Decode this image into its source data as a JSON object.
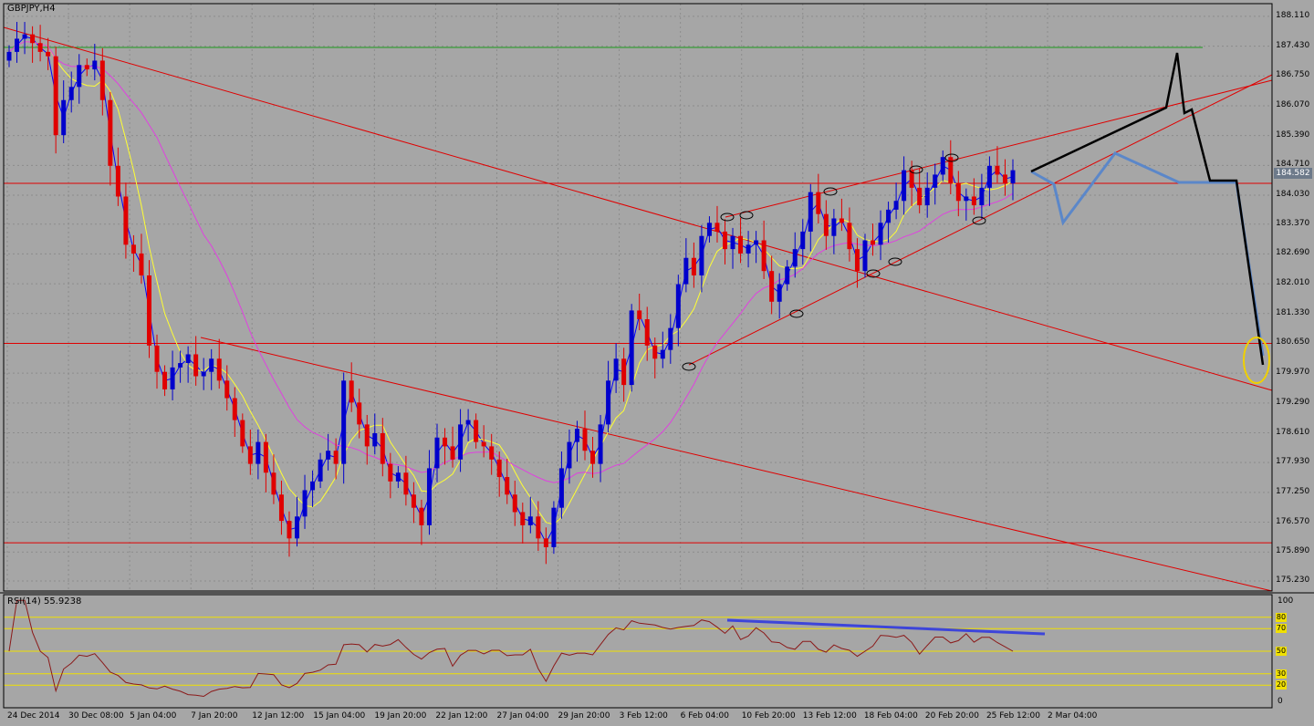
{
  "chart_data": {
    "type": "candlestick",
    "title": "GBPJPY,H4",
    "symbol": "GBPJPY",
    "timeframe": "H4",
    "last_price": "184.582",
    "y_ticks": [
      "188.110",
      "187.430",
      "186.750",
      "186.070",
      "185.390",
      "184.710",
      "184.030",
      "183.370",
      "182.690",
      "182.010",
      "181.330",
      "180.650",
      "179.970",
      "179.290",
      "178.610",
      "177.930",
      "177.250",
      "176.570",
      "175.890",
      "175.230"
    ],
    "x_ticks": [
      "24 Dec 2014",
      "30 Dec 08:00",
      "5 Jan 04:00",
      "7 Jan 20:00",
      "12 Jan 12:00",
      "15 Jan 04:00",
      "19 Jan 20:00",
      "22 Jan 12:00",
      "27 Jan 04:00",
      "29 Jan 20:00",
      "3 Feb 12:00",
      "6 Feb 04:00",
      "10 Feb 20:00",
      "13 Feb 12:00",
      "18 Feb 04:00",
      "20 Feb 20:00",
      "25 Feb 12:00",
      "2 Mar 04:00"
    ],
    "ylim": [
      175.0,
      188.4
    ],
    "horizontal_levels": [
      {
        "price": 187.4,
        "color": "#1a9a1a"
      },
      {
        "price": 184.3,
        "color": "#e00000"
      },
      {
        "price": 180.65,
        "color": "#e00000"
      },
      {
        "price": 176.1,
        "color": "#e00000"
      }
    ],
    "price_path": [
      [
        0,
        187.3
      ],
      [
        1,
        187.6
      ],
      [
        2,
        187.7
      ],
      [
        3,
        187.5
      ],
      [
        4,
        187.3
      ],
      [
        5,
        187.2
      ],
      [
        6,
        185.4
      ],
      [
        7,
        186.2
      ],
      [
        8,
        186.5
      ],
      [
        9,
        187.0
      ],
      [
        10,
        186.9
      ],
      [
        11,
        187.1
      ],
      [
        12,
        186.2
      ],
      [
        13,
        184.7
      ],
      [
        14,
        184.0
      ],
      [
        15,
        182.9
      ],
      [
        16,
        182.7
      ],
      [
        17,
        182.2
      ],
      [
        18,
        180.6
      ],
      [
        19,
        180.0
      ],
      [
        20,
        179.6
      ],
      [
        21,
        180.1
      ],
      [
        22,
        180.2
      ],
      [
        23,
        180.4
      ],
      [
        24,
        179.9
      ],
      [
        25,
        180.0
      ],
      [
        26,
        180.3
      ],
      [
        27,
        179.8
      ],
      [
        28,
        179.4
      ],
      [
        29,
        178.9
      ],
      [
        30,
        178.3
      ],
      [
        31,
        177.9
      ],
      [
        32,
        178.4
      ],
      [
        33,
        177.7
      ],
      [
        34,
        177.2
      ],
      [
        35,
        176.6
      ],
      [
        36,
        176.2
      ],
      [
        37,
        176.7
      ],
      [
        38,
        177.3
      ],
      [
        39,
        177.5
      ],
      [
        40,
        178.0
      ],
      [
        41,
        178.2
      ],
      [
        42,
        177.9
      ],
      [
        43,
        179.8
      ],
      [
        44,
        179.3
      ],
      [
        45,
        178.8
      ],
      [
        46,
        178.3
      ],
      [
        47,
        178.6
      ],
      [
        48,
        177.9
      ],
      [
        49,
        177.5
      ],
      [
        50,
        177.7
      ],
      [
        51,
        177.2
      ],
      [
        52,
        176.9
      ],
      [
        53,
        176.5
      ],
      [
        54,
        177.8
      ],
      [
        55,
        178.5
      ],
      [
        56,
        178.3
      ],
      [
        57,
        178.0
      ],
      [
        58,
        178.8
      ],
      [
        59,
        178.9
      ],
      [
        60,
        178.4
      ],
      [
        61,
        178.3
      ],
      [
        62,
        178.0
      ],
      [
        63,
        177.6
      ],
      [
        64,
        177.2
      ],
      [
        65,
        176.8
      ],
      [
        66,
        176.5
      ],
      [
        67,
        176.7
      ],
      [
        68,
        176.2
      ],
      [
        69,
        176.0
      ],
      [
        70,
        176.9
      ],
      [
        71,
        177.8
      ],
      [
        72,
        178.4
      ],
      [
        73,
        178.7
      ],
      [
        74,
        178.2
      ],
      [
        75,
        177.9
      ],
      [
        76,
        178.8
      ],
      [
        77,
        179.8
      ],
      [
        78,
        180.3
      ],
      [
        79,
        179.7
      ],
      [
        80,
        181.4
      ],
      [
        81,
        181.2
      ],
      [
        82,
        180.6
      ],
      [
        83,
        180.3
      ],
      [
        84,
        180.5
      ],
      [
        85,
        181.0
      ],
      [
        86,
        182.0
      ],
      [
        87,
        182.6
      ],
      [
        88,
        182.2
      ],
      [
        89,
        183.1
      ],
      [
        90,
        183.4
      ],
      [
        91,
        183.2
      ],
      [
        92,
        182.8
      ],
      [
        93,
        183.1
      ],
      [
        94,
        182.7
      ],
      [
        95,
        182.9
      ],
      [
        96,
        183.0
      ],
      [
        97,
        182.3
      ],
      [
        98,
        181.6
      ],
      [
        99,
        182.0
      ],
      [
        100,
        182.4
      ],
      [
        101,
        182.8
      ],
      [
        102,
        183.2
      ],
      [
        103,
        184.1
      ],
      [
        104,
        183.6
      ],
      [
        105,
        183.1
      ],
      [
        106,
        183.5
      ],
      [
        107,
        183.4
      ],
      [
        108,
        182.8
      ],
      [
        109,
        182.3
      ],
      [
        110,
        183.0
      ],
      [
        111,
        182.9
      ],
      [
        112,
        183.4
      ],
      [
        113,
        183.7
      ],
      [
        114,
        183.9
      ],
      [
        115,
        184.6
      ],
      [
        116,
        184.2
      ],
      [
        117,
        183.8
      ],
      [
        118,
        184.2
      ],
      [
        119,
        184.5
      ],
      [
        120,
        184.9
      ],
      [
        121,
        184.3
      ],
      [
        122,
        183.9
      ],
      [
        123,
        184.0
      ],
      [
        124,
        183.8
      ],
      [
        125,
        184.2
      ],
      [
        126,
        184.7
      ],
      [
        127,
        184.5
      ],
      [
        128,
        184.3
      ],
      [
        129,
        184.6
      ]
    ],
    "rsi": {
      "label": "RSI(14) 55.9238",
      "levels": [
        "80",
        "70",
        "50",
        "30",
        "20"
      ],
      "scale": [
        "100",
        "0"
      ]
    },
    "colors": {
      "background": "#a6a6a6",
      "grid": "#8c8c8c",
      "bull_candle": "#0000cc",
      "bear_candle": "#e00000",
      "ma_fast": "#0000ff",
      "ma_mid": "#ffff33",
      "ma_slow": "#e040e0",
      "trendline": "#e00000",
      "rsi_line": "#8b1a1a",
      "rsi_level": "#f0e000",
      "projection_black": "#000000",
      "projection_blue": "#5b87c9",
      "target_circle": "#f0d000",
      "rsi_divergence": "#3d45d9"
    }
  }
}
